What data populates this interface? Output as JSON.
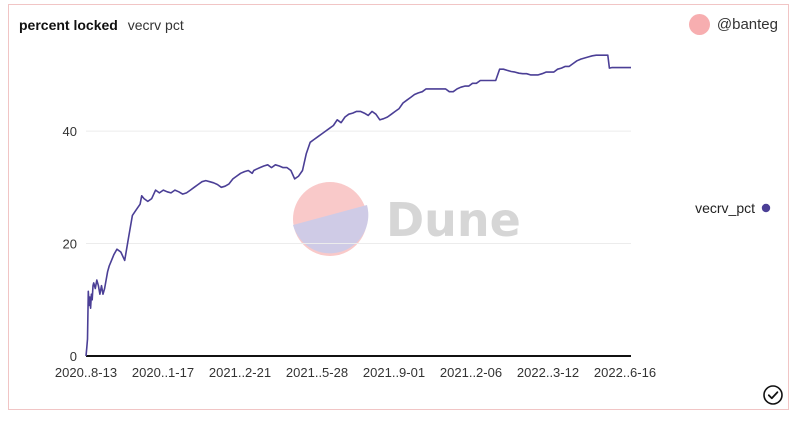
{
  "header": {
    "title": "percent locked",
    "subtitle": "vecrv pct"
  },
  "author": {
    "handle": "@banteg",
    "avatar_color": "#f7aeb0"
  },
  "watermark": {
    "text": "Dune"
  },
  "chart_data": {
    "type": "line",
    "title": "percent locked",
    "subtitle": "vecrv pct",
    "xlabel": "",
    "ylabel": "",
    "ylim": [
      0,
      53
    ],
    "y_ticks": [
      0,
      20,
      40
    ],
    "x_tick_labels": [
      "2020..8-13",
      "2020..1-17",
      "2021..2-21",
      "2021..5-28",
      "2021..9-01",
      "2021..2-06",
      "2022..3-12",
      "2022..6-16"
    ],
    "grid": true,
    "legend_position": "right",
    "series": [
      {
        "name": "vecrv_pct",
        "color": "#4b3f96",
        "x": [
          0,
          1,
          2,
          3,
          4,
          5,
          6,
          7,
          8,
          9,
          10,
          12,
          14,
          16,
          18,
          20,
          22,
          24,
          26,
          28,
          30,
          33,
          36,
          40,
          45,
          50,
          55,
          60,
          65,
          70,
          72,
          75,
          80,
          85,
          90,
          95,
          100,
          105,
          110,
          115,
          120,
          125,
          130,
          135,
          140,
          145,
          150,
          155,
          160,
          165,
          170,
          175,
          180,
          185,
          190,
          195,
          200,
          205,
          210,
          215,
          217,
          220,
          225,
          230,
          235,
          240,
          245,
          250,
          255,
          260,
          265,
          270,
          275,
          280,
          285,
          290,
          295,
          300,
          305,
          310,
          315,
          320,
          325,
          330,
          335,
          340,
          345,
          350,
          355,
          360,
          365,
          370,
          375,
          380,
          385,
          390,
          395,
          400,
          405,
          410,
          415,
          420,
          425,
          430,
          435,
          440,
          445,
          450,
          455,
          460,
          465,
          470,
          475,
          480,
          485,
          490,
          495,
          500,
          505,
          510,
          515,
          520,
          525,
          527,
          530,
          535,
          540,
          545,
          550,
          555,
          560,
          565,
          570,
          575,
          580,
          585,
          590,
          595,
          600,
          605,
          610,
          615,
          620,
          625,
          630,
          635,
          640,
          645,
          650,
          655,
          660,
          665,
          670,
          675,
          677,
          680,
          685,
          690,
          695,
          700,
          705
        ],
        "values": [
          0,
          1.5,
          3,
          11.5,
          9,
          10.5,
          8.5,
          11,
          10,
          12.5,
          13,
          12,
          13.5,
          12.5,
          11,
          12.5,
          11,
          12,
          13.5,
          15,
          16,
          17,
          18,
          19,
          18.5,
          17,
          21,
          25,
          26,
          27,
          28.5,
          28,
          27.5,
          28,
          29.5,
          29,
          29.5,
          29.2,
          29,
          29.5,
          29.2,
          28.8,
          29,
          29.5,
          30,
          30.5,
          31,
          31.2,
          31,
          30.8,
          30.5,
          30,
          30.2,
          30.6,
          31.5,
          32,
          32.5,
          32.8,
          33,
          32.5,
          33,
          33.2,
          33.5,
          33.8,
          34,
          33.5,
          34,
          33.8,
          33.5,
          33.5,
          33,
          31.5,
          32,
          33,
          36,
          38,
          38.5,
          39,
          39.5,
          40,
          40.5,
          41,
          42,
          41.5,
          42.5,
          43,
          43.2,
          43.5,
          43.5,
          43.2,
          42.8,
          43.5,
          43,
          42,
          42.2,
          42.5,
          43,
          43.5,
          44,
          45,
          45.5,
          46,
          46.5,
          46.8,
          47,
          47.5,
          47.5,
          47.5,
          47.5,
          47.5,
          47.5,
          47,
          47,
          47.5,
          47.8,
          48,
          48,
          48.5,
          48.5,
          49,
          49,
          49,
          49,
          49,
          49,
          51,
          51,
          50.8,
          50.6,
          50.5,
          50.3,
          50.2,
          50.2,
          50,
          50,
          50,
          50.2,
          50.5,
          50.5,
          50.5,
          51,
          51.2,
          51.5,
          51.5,
          52,
          52.5,
          52.8,
          53,
          53.2,
          53.4,
          53.5,
          53.5,
          53.5,
          53.5,
          51.2,
          51.3,
          51.3,
          51.3,
          51.3,
          51.3,
          51.3
        ]
      }
    ]
  }
}
